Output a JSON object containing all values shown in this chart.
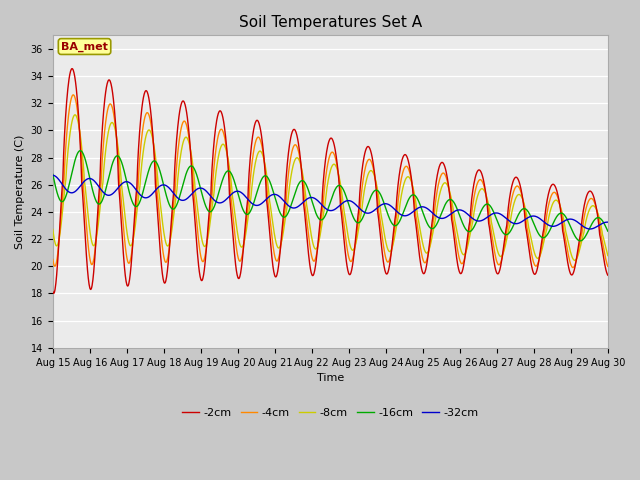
{
  "title": "Soil Temperatures Set A",
  "xlabel": "Time",
  "ylabel": "Soil Temperature (C)",
  "annotation": "BA_met",
  "xlim": [
    0,
    15
  ],
  "ylim": [
    14,
    37
  ],
  "yticks": [
    14,
    16,
    18,
    20,
    22,
    24,
    26,
    28,
    30,
    32,
    34,
    36
  ],
  "xtick_labels": [
    "Aug 15",
    "Aug 16",
    "Aug 17",
    "Aug 18",
    "Aug 19",
    "Aug 20",
    "Aug 21",
    "Aug 22",
    "Aug 23",
    "Aug 24",
    "Aug 25",
    "Aug 26",
    "Aug 27",
    "Aug 28",
    "Aug 29",
    "Aug 30"
  ],
  "legend_labels": [
    "-2cm",
    "-4cm",
    "-8cm",
    "-16cm",
    "-32cm"
  ],
  "legend_colors": [
    "#cc0000",
    "#ff8800",
    "#cccc00",
    "#00aa00",
    "#0000cc"
  ],
  "plot_bg": "#ebebeb",
  "fig_bg": "#c8c8c8",
  "line_width": 1.0,
  "title_fontsize": 11,
  "annotation_fontsize": 8,
  "tick_fontsize": 7,
  "axis_label_fontsize": 8
}
